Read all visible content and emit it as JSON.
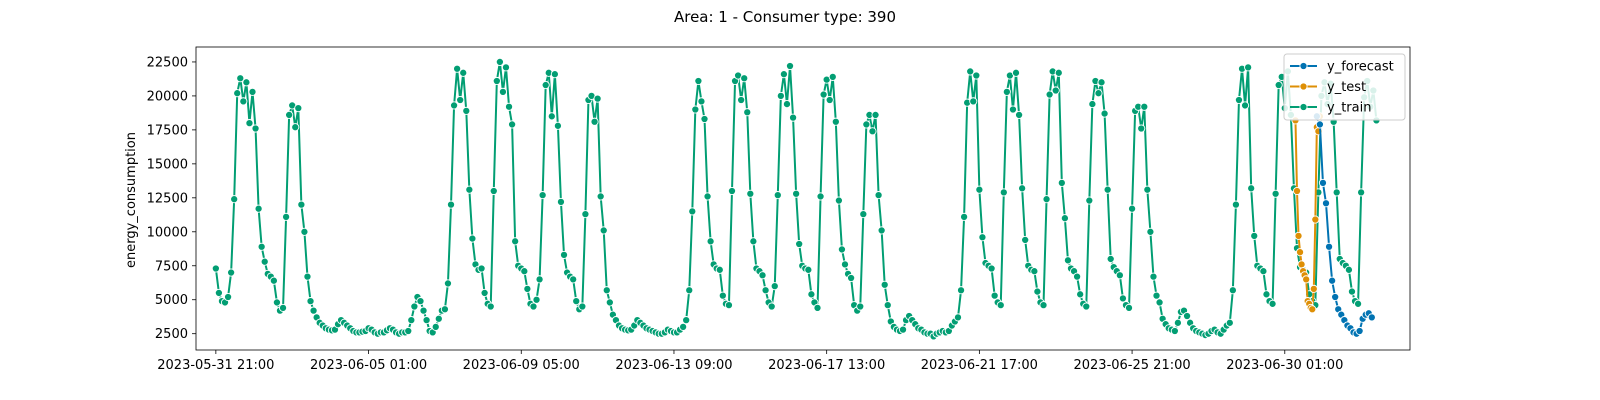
{
  "chart_data": {
    "type": "line",
    "title": "Area: 1 - Consumer type: 390",
    "xlabel": "",
    "ylabel": "energy_consumption",
    "ylim": [
      1300,
      23600
    ],
    "xlim": [
      "2023-05-31 08:00",
      "2023-07-03 11:00"
    ],
    "yticks": [
      2500,
      5000,
      7500,
      10000,
      12500,
      15000,
      17500,
      20000,
      22500
    ],
    "yticklabels": [
      "2500",
      "5000",
      "7500",
      "10000",
      "12500",
      "15000",
      "17500",
      "20000",
      "22500"
    ],
    "xticks": [
      "2023-05-31 21:00",
      "2023-06-05 01:00",
      "2023-06-09 05:00",
      "2023-06-13 09:00",
      "2023-06-17 13:00",
      "2023-06-21 17:00",
      "2023-06-25 21:00",
      "2023-06-30 01:00"
    ],
    "grid": false,
    "legend_position": "top-right",
    "series": [
      {
        "name": "y_forecast",
        "color": "#0173b2",
        "start": "2023-06-30 22:00",
        "step_hours": 2,
        "values": [
          18500,
          17900,
          13600,
          12100,
          8900,
          6400,
          5200,
          4300,
          3900,
          3500,
          3100,
          2900,
          2600,
          2500,
          2700,
          3600,
          3900,
          4000,
          3700
        ]
      },
      {
        "name": "y_test",
        "color": "#de8f05",
        "start": "2023-06-30 08:00",
        "step_hours": 1,
        "values": [
          18200,
          13000,
          9700,
          8500,
          7600,
          7100,
          6800,
          6500,
          4900,
          4700,
          4400,
          4300,
          5800,
          10900,
          17700,
          17400,
          18500
        ]
      },
      {
        "name": "y_train",
        "color": "#029e73",
        "start": "2023-05-31 21:00",
        "step_hours": 2,
        "values": [
          7300,
          5500,
          4900,
          4800,
          5200,
          7000,
          12400,
          20200,
          21300,
          19600,
          21000,
          18000,
          20300,
          17600,
          11700,
          8900,
          7800,
          6900,
          6700,
          6400,
          4800,
          4200,
          4400,
          11100,
          18600,
          19300,
          17700,
          19100,
          12000,
          10000,
          6700,
          4900,
          4200,
          3700,
          3300,
          3100,
          2900,
          2800,
          2750,
          2800,
          3200,
          3500,
          3300,
          3100,
          2900,
          2700,
          2600,
          2600,
          2650,
          2700,
          2900,
          2800,
          2600,
          2500,
          2600,
          2600,
          2750,
          2900,
          2800,
          2600,
          2500,
          2600,
          2600,
          2700,
          3500,
          4500,
          5200,
          4900,
          4200,
          3500,
          2700,
          2600,
          3000,
          3600,
          4200,
          4300,
          6200,
          12000,
          19300,
          22000,
          19700,
          21700,
          18900,
          13100,
          9500,
          7600,
          7200,
          7300,
          5500,
          4700,
          4500,
          13000,
          21100,
          22500,
          20300,
          22100,
          19200,
          17900,
          9300,
          7500,
          7300,
          7100,
          5800,
          4700,
          4500,
          5000,
          6500,
          12700,
          20800,
          21700,
          18500,
          21600,
          17800,
          12200,
          8300,
          7000,
          6700,
          6500,
          4900,
          4300,
          4500,
          11300,
          19700,
          20000,
          18100,
          19800,
          12600,
          10100,
          5700,
          4800,
          3900,
          3500,
          3100,
          2900,
          2800,
          2750,
          2800,
          3100,
          3500,
          3300,
          3100,
          2900,
          2800,
          2700,
          2600,
          2500,
          2500,
          2600,
          2800,
          2700,
          2600,
          2600,
          2800,
          3000,
          3500,
          5700,
          11500,
          19000,
          21100,
          19600,
          18300,
          12600,
          9300,
          7600,
          7300,
          7200,
          5300,
          4700,
          4600,
          13000,
          21100,
          21500,
          19700,
          21300,
          18800,
          12800,
          9300,
          7300,
          7100,
          6800,
          5700,
          4800,
          4500,
          6000,
          12700,
          20000,
          21600,
          19400,
          22200,
          18400,
          12800,
          9100,
          7500,
          7300,
          7200,
          5400,
          4800,
          4400,
          12600,
          20100,
          21200,
          19700,
          21400,
          18100,
          12300,
          8700,
          7600,
          6900,
          6600,
          4600,
          4200,
          4500,
          11300,
          17900,
          18600,
          17400,
          18600,
          12700,
          10100,
          6100,
          4600,
          3400,
          3000,
          2800,
          2700,
          2800,
          3500,
          3800,
          3500,
          3200,
          2900,
          2800,
          2600,
          2500,
          2500,
          2300,
          2500,
          2600,
          2700,
          2600,
          2700,
          3100,
          3400,
          3700,
          5700,
          11100,
          19500,
          21800,
          19600,
          21500,
          13100,
          9600,
          7700,
          7500,
          7300,
          5300,
          4800,
          4600,
          12900,
          20300,
          21500,
          19000,
          21700,
          18600,
          13200,
          9400,
          7500,
          7200,
          7100,
          5600,
          4800,
          4600,
          12400,
          20100,
          21800,
          20400,
          21700,
          13600,
          11000,
          7900,
          7300,
          7100,
          6700,
          5400,
          4700,
          4500,
          12300,
          19400,
          21100,
          20200,
          21000,
          18700,
          13100,
          8000,
          7400,
          7100,
          6800,
          5100,
          4600,
          4400,
          11700,
          18900,
          19200,
          17600,
          19200,
          13100,
          10000,
          6700,
          5300,
          4800,
          3600,
          3200,
          2900,
          2800,
          2700,
          3300,
          4100,
          4200,
          3800,
          3300,
          2900,
          2700,
          2600,
          2500,
          2400,
          2500,
          2700,
          2800,
          2600,
          2500,
          2800,
          3100,
          3300,
          5700,
          12000,
          19700,
          22000,
          19300,
          22100,
          13200,
          9700,
          7500,
          7300,
          7100,
          5400,
          4900,
          4700,
          12800,
          20800,
          21400,
          19100,
          21800,
          18600,
          13200,
          8800,
          7400,
          7200,
          7000,
          5400,
          4900,
          4600,
          12900,
          20000,
          21000,
          19400,
          20900,
          18100,
          12900,
          8000,
          7700,
          7500,
          7200,
          5600,
          4900,
          4700,
          12900,
          19900,
          21100,
          19200,
          20400,
          18200
        ]
      }
    ]
  }
}
